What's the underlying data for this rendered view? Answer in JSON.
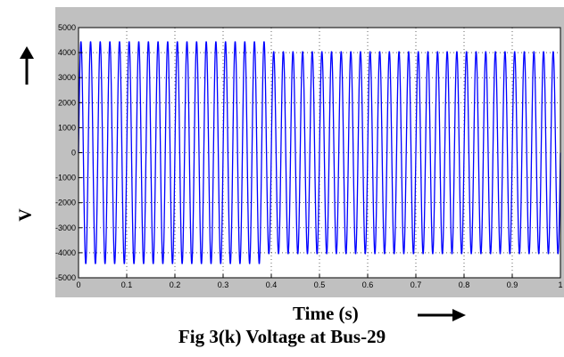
{
  "chart_data": {
    "type": "line",
    "caption": "Fig 3(k) Voltage at Bus-29",
    "xlabel": "Time (s)",
    "ylabel": "V",
    "xlim": [
      0,
      1
    ],
    "ylim": [
      -5000,
      5000
    ],
    "x_ticks": [
      "0",
      "0.1",
      "0.2",
      "0.3",
      "0.4",
      "0.5",
      "0.6",
      "0.7",
      "0.8",
      "0.9",
      "1"
    ],
    "y_ticks": [
      "5000",
      "4000",
      "3000",
      "2000",
      "1000",
      "0",
      "-1000",
      "-2000",
      "-3000",
      "-4000",
      "-5000"
    ],
    "grid": true,
    "series": [
      {
        "color": "#0000ff",
        "frequency_hz": 50,
        "segments": [
          {
            "t_start": 0,
            "t_end": 0.39,
            "amplitude": 4450
          },
          {
            "t_start": 0.39,
            "t_end": 1.0,
            "amplitude": 4050
          }
        ]
      }
    ],
    "colors": {
      "axes_background": "#ffffff",
      "figure_frame": "#c0c0c0",
      "grid": "#000000"
    }
  }
}
